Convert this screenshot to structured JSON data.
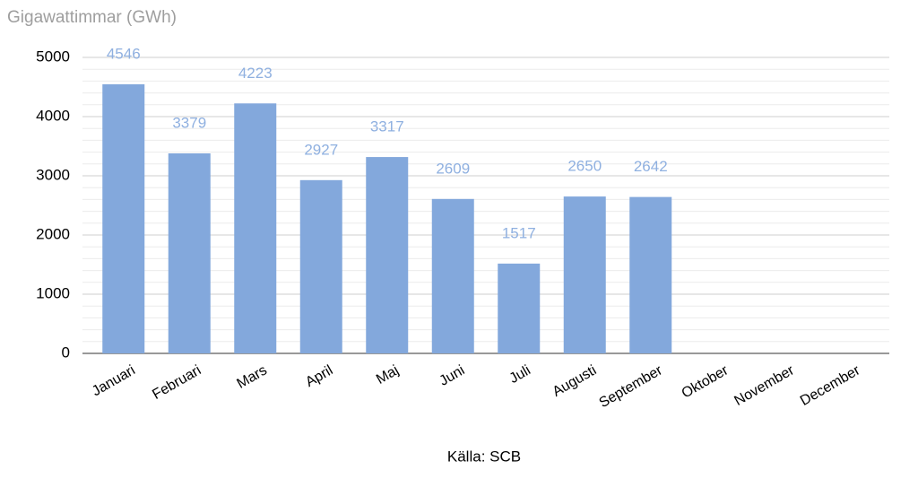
{
  "chart_data": {
    "type": "bar",
    "title": "Gigawattimmar (GWh)",
    "source": "Källa: SCB",
    "categories": [
      "Januari",
      "Februari",
      "Mars",
      "April",
      "Maj",
      "Juni",
      "Juli",
      "Augusti",
      "September",
      "Oktober",
      "November",
      "December"
    ],
    "values": [
      4546,
      3379,
      4223,
      2927,
      3317,
      2609,
      1517,
      2650,
      2642,
      null,
      null,
      null
    ],
    "color": "#83a8dc",
    "label_color": "#8fb0e0",
    "ylim": [
      0,
      5000
    ],
    "yticks": [
      0,
      1000,
      2000,
      3000,
      4000,
      5000
    ],
    "minor_yticks": [
      200,
      400,
      600,
      800,
      1200,
      1400,
      1600,
      1800,
      2200,
      2400,
      2600,
      2800,
      3200,
      3400,
      3600,
      3800,
      4200,
      4400,
      4600,
      4800
    ],
    "grid": true,
    "data_labels": true
  }
}
